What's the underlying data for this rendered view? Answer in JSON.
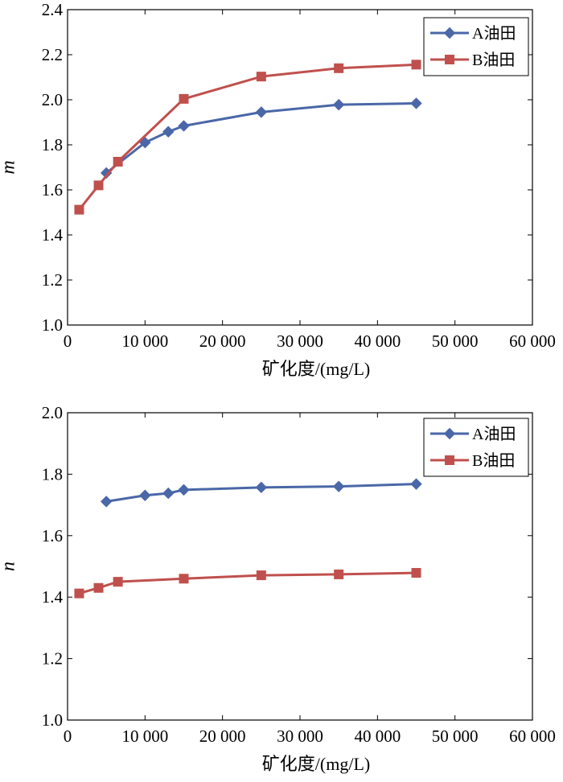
{
  "chart_data": [
    {
      "type": "line",
      "xlabel": "矿化度/(mg/L)",
      "ylabel": "m",
      "xlim": [
        0,
        60000
      ],
      "ylim": [
        1.0,
        2.4
      ],
      "x_ticks": [
        0,
        10000,
        20000,
        30000,
        40000,
        50000,
        60000
      ],
      "x_tick_labels": [
        "0",
        "10 000",
        "20 000",
        "30 000",
        "40 000",
        "50 000",
        "60 000"
      ],
      "y_ticks": [
        1.0,
        1.2,
        1.4,
        1.6,
        1.8,
        2.0,
        2.2,
        2.4
      ],
      "y_tick_labels": [
        "1.0",
        "1.2",
        "1.4",
        "1.6",
        "1.8",
        "2.0",
        "2.2",
        "2.4"
      ],
      "legend_position": "top-right",
      "series": [
        {
          "name": "A油田",
          "marker": "diamond",
          "color": "#4a67a8",
          "x": [
            5000,
            10000,
            13000,
            15000,
            25000,
            35000,
            45000
          ],
          "y": [
            1.675,
            1.81,
            1.858,
            1.884,
            1.945,
            1.978,
            1.984
          ]
        },
        {
          "name": "B油田",
          "marker": "square",
          "color": "#c0504d",
          "x": [
            1500,
            4000,
            6500,
            15000,
            25000,
            35000,
            45000
          ],
          "y": [
            1.512,
            1.62,
            1.725,
            2.004,
            2.103,
            2.14,
            2.156
          ]
        }
      ]
    },
    {
      "type": "line",
      "xlabel": "矿化度/(mg/L)",
      "ylabel": "n",
      "xlim": [
        0,
        60000
      ],
      "ylim": [
        1.0,
        2.0
      ],
      "x_ticks": [
        0,
        10000,
        20000,
        30000,
        40000,
        50000,
        60000
      ],
      "x_tick_labels": [
        "0",
        "10 000",
        "20 000",
        "30 000",
        "40 000",
        "50 000",
        "60 000"
      ],
      "y_ticks": [
        1.0,
        1.2,
        1.4,
        1.6,
        1.8,
        2.0
      ],
      "y_tick_labels": [
        "1.0",
        "1.2",
        "1.4",
        "1.6",
        "1.8",
        "2.0"
      ],
      "legend_position": "top-right",
      "series": [
        {
          "name": "A油田",
          "marker": "diamond",
          "color": "#4a67a8",
          "x": [
            5000,
            10000,
            13000,
            15000,
            25000,
            35000,
            45000
          ],
          "y": [
            1.711,
            1.731,
            1.738,
            1.749,
            1.757,
            1.76,
            1.768
          ]
        },
        {
          "name": "B油田",
          "marker": "square",
          "color": "#c0504d",
          "x": [
            1500,
            4000,
            6500,
            15000,
            25000,
            35000,
            45000
          ],
          "y": [
            1.412,
            1.43,
            1.45,
            1.46,
            1.471,
            1.474,
            1.479
          ]
        }
      ]
    }
  ]
}
